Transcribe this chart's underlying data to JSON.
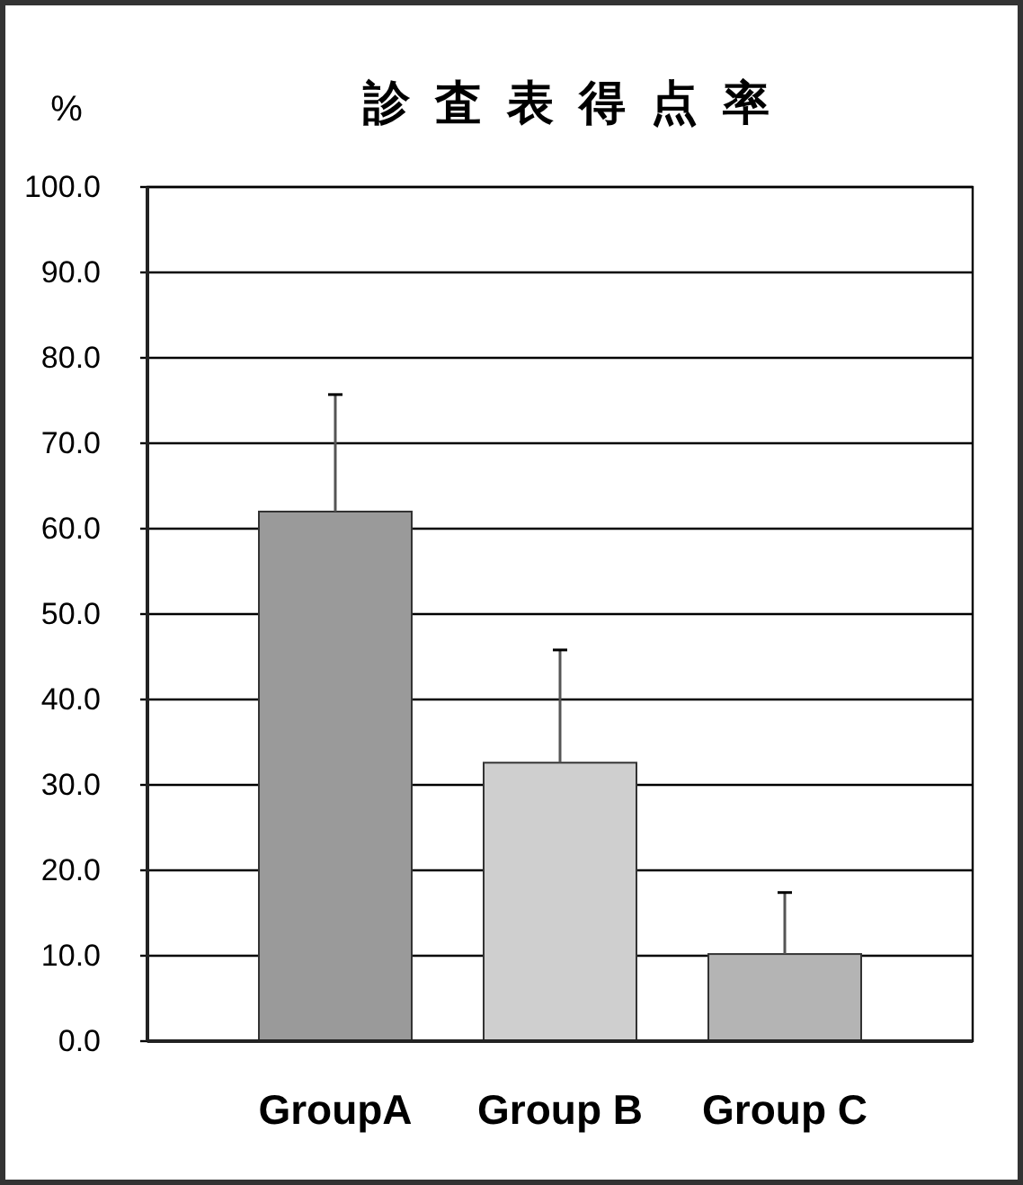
{
  "chart_data": {
    "type": "bar",
    "title": "診査表得点率",
    "ylabel": "%",
    "categories": [
      "GroupA",
      "Group B",
      "Group C"
    ],
    "values": [
      62.0,
      32.6,
      10.2
    ],
    "colors": [
      "#9a9a9a",
      "#cfcfcf",
      "#b4b4b4"
    ],
    "errors": [
      [
        62.0,
        75.7
      ],
      [
        32.6,
        45.8
      ],
      [
        10.2,
        17.4
      ]
    ],
    "ylim": [
      0,
      100
    ],
    "yticks": [
      {
        "value": 0,
        "label": "0.0"
      },
      {
        "value": 10,
        "label": "10.0"
      },
      {
        "value": 20,
        "label": "20.0"
      },
      {
        "value": 30,
        "label": "30.0"
      },
      {
        "value": 40,
        "label": "40.0"
      },
      {
        "value": 50,
        "label": "50.0"
      },
      {
        "value": 60,
        "label": "60.0"
      },
      {
        "value": 70,
        "label": "70.0"
      },
      {
        "value": 80,
        "label": "80.0"
      },
      {
        "value": 90,
        "label": "90.0"
      },
      {
        "value": 100,
        "label": "100.0"
      }
    ],
    "grid": "y"
  }
}
